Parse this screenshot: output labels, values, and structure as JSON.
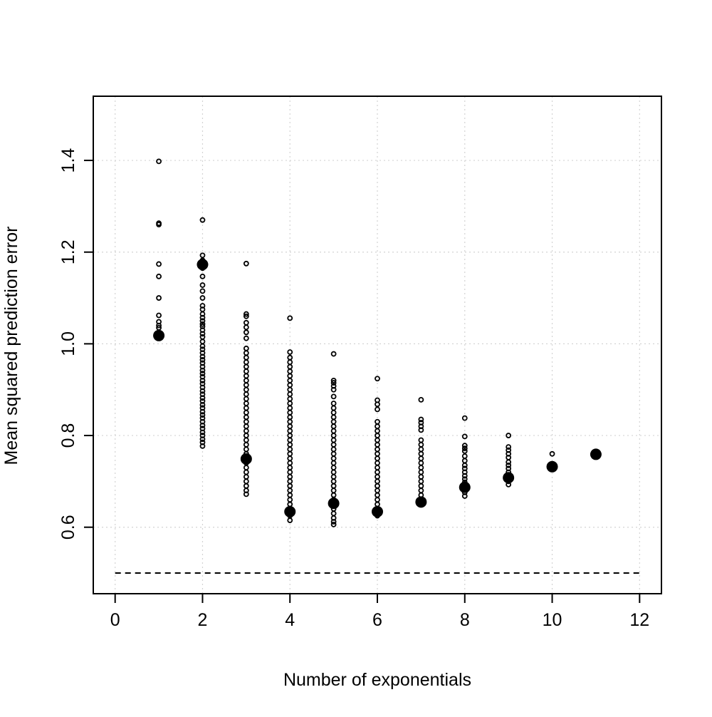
{
  "chart_data": {
    "type": "scatter",
    "title": "",
    "xlabel": "Number of exponentials",
    "ylabel": "Mean squared prediction error",
    "xlim": [
      -0.5,
      12.5
    ],
    "ylim": [
      0.455,
      1.54
    ],
    "x_ticks": [
      0,
      2,
      4,
      6,
      8,
      10,
      12
    ],
    "y_ticks": [
      0.6,
      0.8,
      1.0,
      1.2,
      1.4
    ],
    "x_tick_labels": [
      "0",
      "2",
      "4",
      "6",
      "8",
      "10",
      "12"
    ],
    "y_tick_labels": [
      "0.6",
      "0.8",
      "1.0",
      "1.2",
      "1.4"
    ],
    "grid": true,
    "reference_line": {
      "y": 0.5,
      "x_range": [
        0,
        12
      ],
      "style": "dashed"
    },
    "series": [
      {
        "marker": "open-circle",
        "points": [
          {
            "x": 1,
            "y": [
              1.398,
              1.263,
              1.26,
              1.174,
              1.147,
              1.1,
              1.062,
              1.048,
              1.04,
              1.035
            ]
          },
          {
            "x": 2,
            "y": [
              1.27,
              1.193,
              1.182,
              1.165,
              1.147,
              1.128,
              1.115,
              1.1,
              1.083,
              1.075,
              1.065,
              1.057,
              1.05,
              1.043,
              1.038,
              1.03,
              1.022,
              1.015,
              1.005,
              0.995,
              0.988,
              0.98,
              0.972,
              0.965,
              0.958,
              0.95,
              0.942,
              0.935,
              0.928,
              0.92,
              0.913,
              0.905,
              0.897,
              0.89,
              0.882,
              0.875,
              0.867,
              0.86,
              0.852,
              0.845,
              0.838,
              0.83,
              0.822,
              0.815,
              0.807,
              0.8,
              0.792,
              0.785,
              0.777
            ]
          },
          {
            "x": 3,
            "y": [
              1.175,
              1.065,
              1.06,
              1.046,
              1.036,
              1.025,
              1.012,
              0.99,
              0.98,
              0.97,
              0.96,
              0.95,
              0.94,
              0.93,
              0.92,
              0.91,
              0.9,
              0.89,
              0.88,
              0.87,
              0.86,
              0.85,
              0.84,
              0.83,
              0.82,
              0.81,
              0.8,
              0.79,
              0.78,
              0.77,
              0.76,
              0.75,
              0.74,
              0.73,
              0.72,
              0.71,
              0.7,
              0.69,
              0.68,
              0.672
            ]
          },
          {
            "x": 4,
            "y": [
              1.056,
              0.982,
              0.97,
              0.96,
              0.95,
              0.94,
              0.93,
              0.92,
              0.91,
              0.9,
              0.89,
              0.88,
              0.87,
              0.86,
              0.85,
              0.84,
              0.83,
              0.82,
              0.81,
              0.8,
              0.79,
              0.78,
              0.77,
              0.76,
              0.75,
              0.74,
              0.73,
              0.72,
              0.71,
              0.7,
              0.69,
              0.68,
              0.67,
              0.66,
              0.65,
              0.64,
              0.632,
              0.625,
              0.615
            ]
          },
          {
            "x": 5,
            "y": [
              0.978,
              0.92,
              0.915,
              0.908,
              0.9,
              0.885,
              0.87,
              0.86,
              0.85,
              0.84,
              0.83,
              0.82,
              0.81,
              0.8,
              0.79,
              0.78,
              0.77,
              0.76,
              0.75,
              0.74,
              0.73,
              0.72,
              0.71,
              0.7,
              0.69,
              0.68,
              0.67,
              0.66,
              0.65,
              0.64,
              0.63,
              0.62,
              0.612,
              0.606
            ]
          },
          {
            "x": 6,
            "y": [
              0.924,
              0.877,
              0.868,
              0.857,
              0.83,
              0.82,
              0.81,
              0.8,
              0.79,
              0.78,
              0.77,
              0.76,
              0.75,
              0.74,
              0.73,
              0.72,
              0.71,
              0.7,
              0.69,
              0.68,
              0.67,
              0.66,
              0.65,
              0.64,
              0.632,
              0.625
            ]
          },
          {
            "x": 7,
            "y": [
              0.878,
              0.835,
              0.828,
              0.82,
              0.812,
              0.79,
              0.78,
              0.77,
              0.76,
              0.75,
              0.74,
              0.73,
              0.72,
              0.71,
              0.7,
              0.69,
              0.68,
              0.67,
              0.66,
              0.652
            ]
          },
          {
            "x": 8,
            "y": [
              0.838,
              0.798,
              0.778,
              0.772,
              0.766,
              0.755,
              0.745,
              0.735,
              0.728,
              0.72,
              0.712,
              0.705,
              0.698,
              0.69,
              0.683,
              0.676,
              0.668
            ]
          },
          {
            "x": 9,
            "y": [
              0.8,
              0.775,
              0.768,
              0.76,
              0.752,
              0.742,
              0.735,
              0.728,
              0.72,
              0.712,
              0.705,
              0.7,
              0.693
            ]
          },
          {
            "x": 10,
            "y": [
              0.76,
              0.735,
              0.728
            ]
          }
        ]
      },
      {
        "marker": "filled-circle",
        "points": [
          {
            "x": 1,
            "y": 1.018
          },
          {
            "x": 2,
            "y": 1.173
          },
          {
            "x": 3,
            "y": 0.749
          },
          {
            "x": 4,
            "y": 0.634
          },
          {
            "x": 5,
            "y": 0.652
          },
          {
            "x": 6,
            "y": 0.634
          },
          {
            "x": 7,
            "y": 0.655
          },
          {
            "x": 8,
            "y": 0.687
          },
          {
            "x": 9,
            "y": 0.708
          },
          {
            "x": 10,
            "y": 0.732
          },
          {
            "x": 11,
            "y": 0.759
          }
        ]
      }
    ]
  }
}
